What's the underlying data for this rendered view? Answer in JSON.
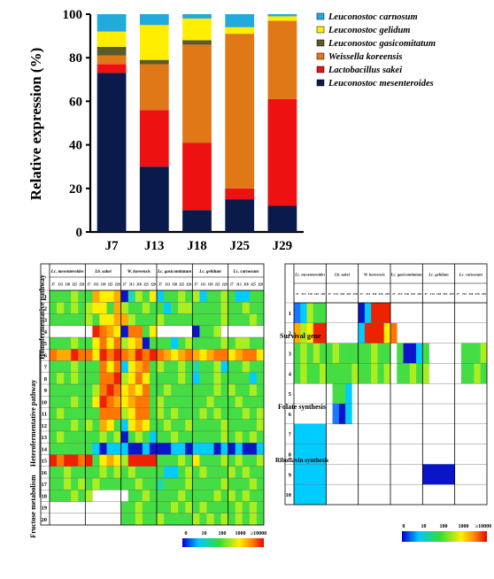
{
  "chart_data": [
    {
      "type": "bar",
      "stacked": true,
      "ylabel": "Relative expression (%)",
      "ylim": [
        0,
        100
      ],
      "yticks": [
        0,
        20,
        40,
        60,
        80,
        100
      ],
      "categories": [
        "J7",
        "J13",
        "J18",
        "J25",
        "J29"
      ],
      "legend_position": "right",
      "series": [
        {
          "name": "Leuconostoc mesenteroides",
          "color": "#0a1a4a",
          "values": [
            73,
            30,
            10,
            15,
            12
          ]
        },
        {
          "name": "Lactobacillus sakei",
          "color": "#ee1111",
          "values": [
            4,
            26,
            31,
            5,
            49
          ]
        },
        {
          "name": "Weissella koreensis",
          "color": "#e07818",
          "values": [
            4,
            21,
            45,
            71,
            36
          ]
        },
        {
          "name": "Leuconostoc gasicomitatum",
          "color": "#5a5a2a",
          "values": [
            4,
            2,
            2,
            0,
            0
          ]
        },
        {
          "name": "Leuconostoc gelidum",
          "color": "#ffee00",
          "values": [
            7,
            16,
            10,
            3,
            2
          ]
        },
        {
          "name": "Leuconostoc carnosum",
          "color": "#22aadd",
          "values": [
            8,
            5,
            2,
            6,
            1
          ]
        }
      ],
      "legend_order": [
        "Leuconostoc carnosum",
        "Leuconostoc gelidum",
        "Leuconostoc gasicomitatum",
        "Weissella koreensis",
        "Lactobacillus sakei",
        "Leuconostoc mesenteroides"
      ]
    },
    {
      "type": "heatmap",
      "species": [
        "Lc. mesenteroides",
        "Lb. sakei",
        "W. koreensis",
        "Lc. gasicomitatum",
        "Lc. gelidum",
        "Lc. carnosum"
      ],
      "timepoints": [
        "J7",
        "J13",
        "J18",
        "J25",
        "J29"
      ],
      "rows": [
        "1",
        "2",
        "3",
        "4",
        "5",
        "6",
        "7",
        "8",
        "9",
        "10",
        "11",
        "12",
        "13",
        "14",
        "15",
        "16",
        "17",
        "18",
        "19",
        "20"
      ],
      "row_groups": [
        "Homofermentative pathway",
        "Heterofermentative pathway",
        "Fructose metabolism"
      ],
      "colorbar_ticks": [
        "0",
        "10",
        "100",
        "1000",
        "≥10000"
      ]
    },
    {
      "type": "heatmap",
      "species": [
        "Lc. mesenteroides",
        "Lb. sakei",
        "W. koreensis",
        "Lc. gasicomitatum",
        "Lc. gelidum",
        "Lc. carnosum"
      ],
      "timepoints": [
        "J7",
        "J13",
        "J18",
        "J25",
        "J29"
      ],
      "rows": [
        "1",
        "2",
        "3",
        "4",
        "5",
        "6",
        "7",
        "8",
        "9",
        "10"
      ],
      "row_groups": [
        "Survival gene",
        "Folate synthesis",
        "Riboflavin synthesis"
      ],
      "colorbar_ticks": [
        "0",
        "10",
        "100",
        "1000",
        "≥10000"
      ]
    }
  ]
}
